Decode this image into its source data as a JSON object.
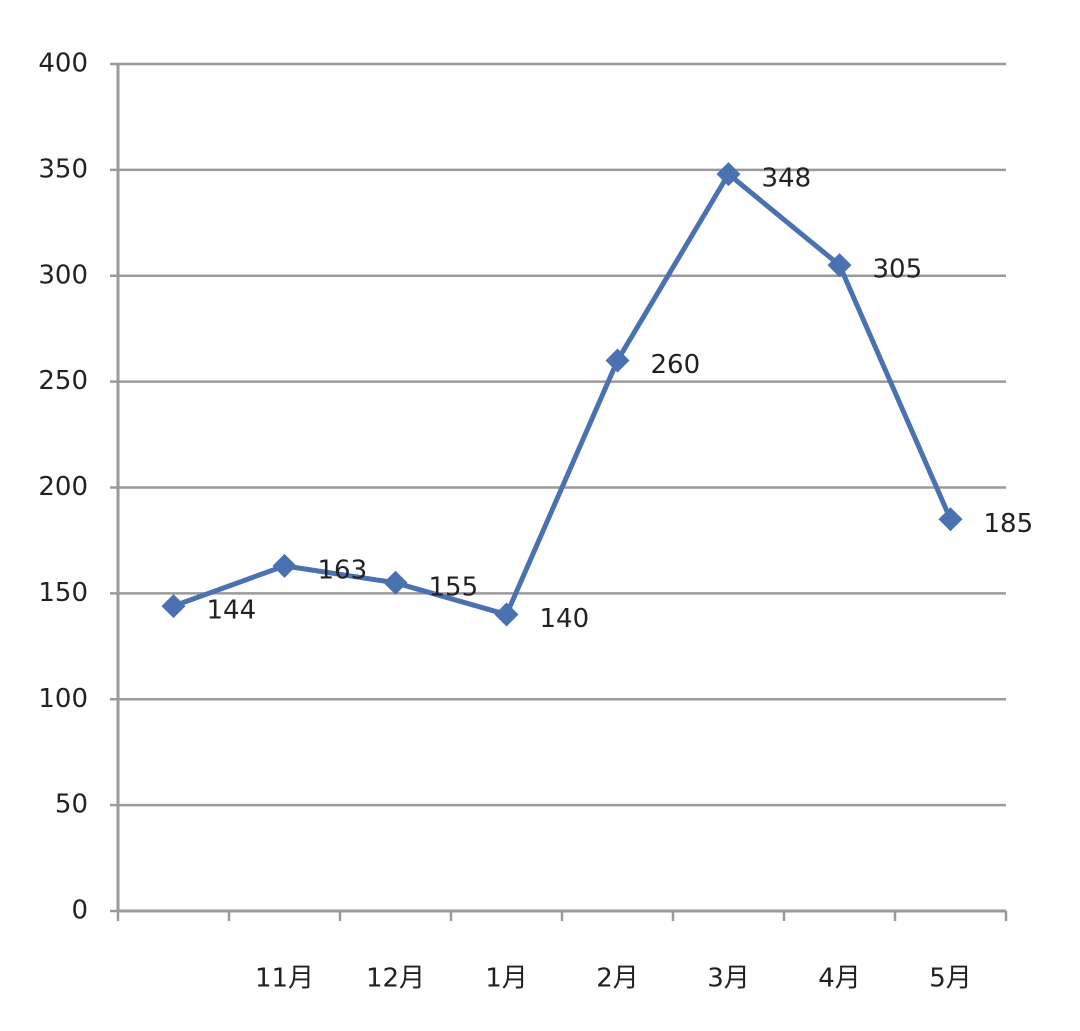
{
  "chart_data": {
    "type": "line",
    "categories": [
      null,
      "11月",
      "12月",
      "1月",
      "2月",
      "3月",
      "4月",
      "5月"
    ],
    "series": [
      {
        "color": "#4a72b0",
        "values": [
          144,
          163,
          155,
          140,
          260,
          348,
          305,
          185
        ]
      }
    ],
    "ylim": [
      0,
      400
    ],
    "yticks": [
      0,
      50,
      100,
      150,
      200,
      250,
      300,
      350,
      400
    ],
    "grid": true,
    "data_labels": true
  }
}
